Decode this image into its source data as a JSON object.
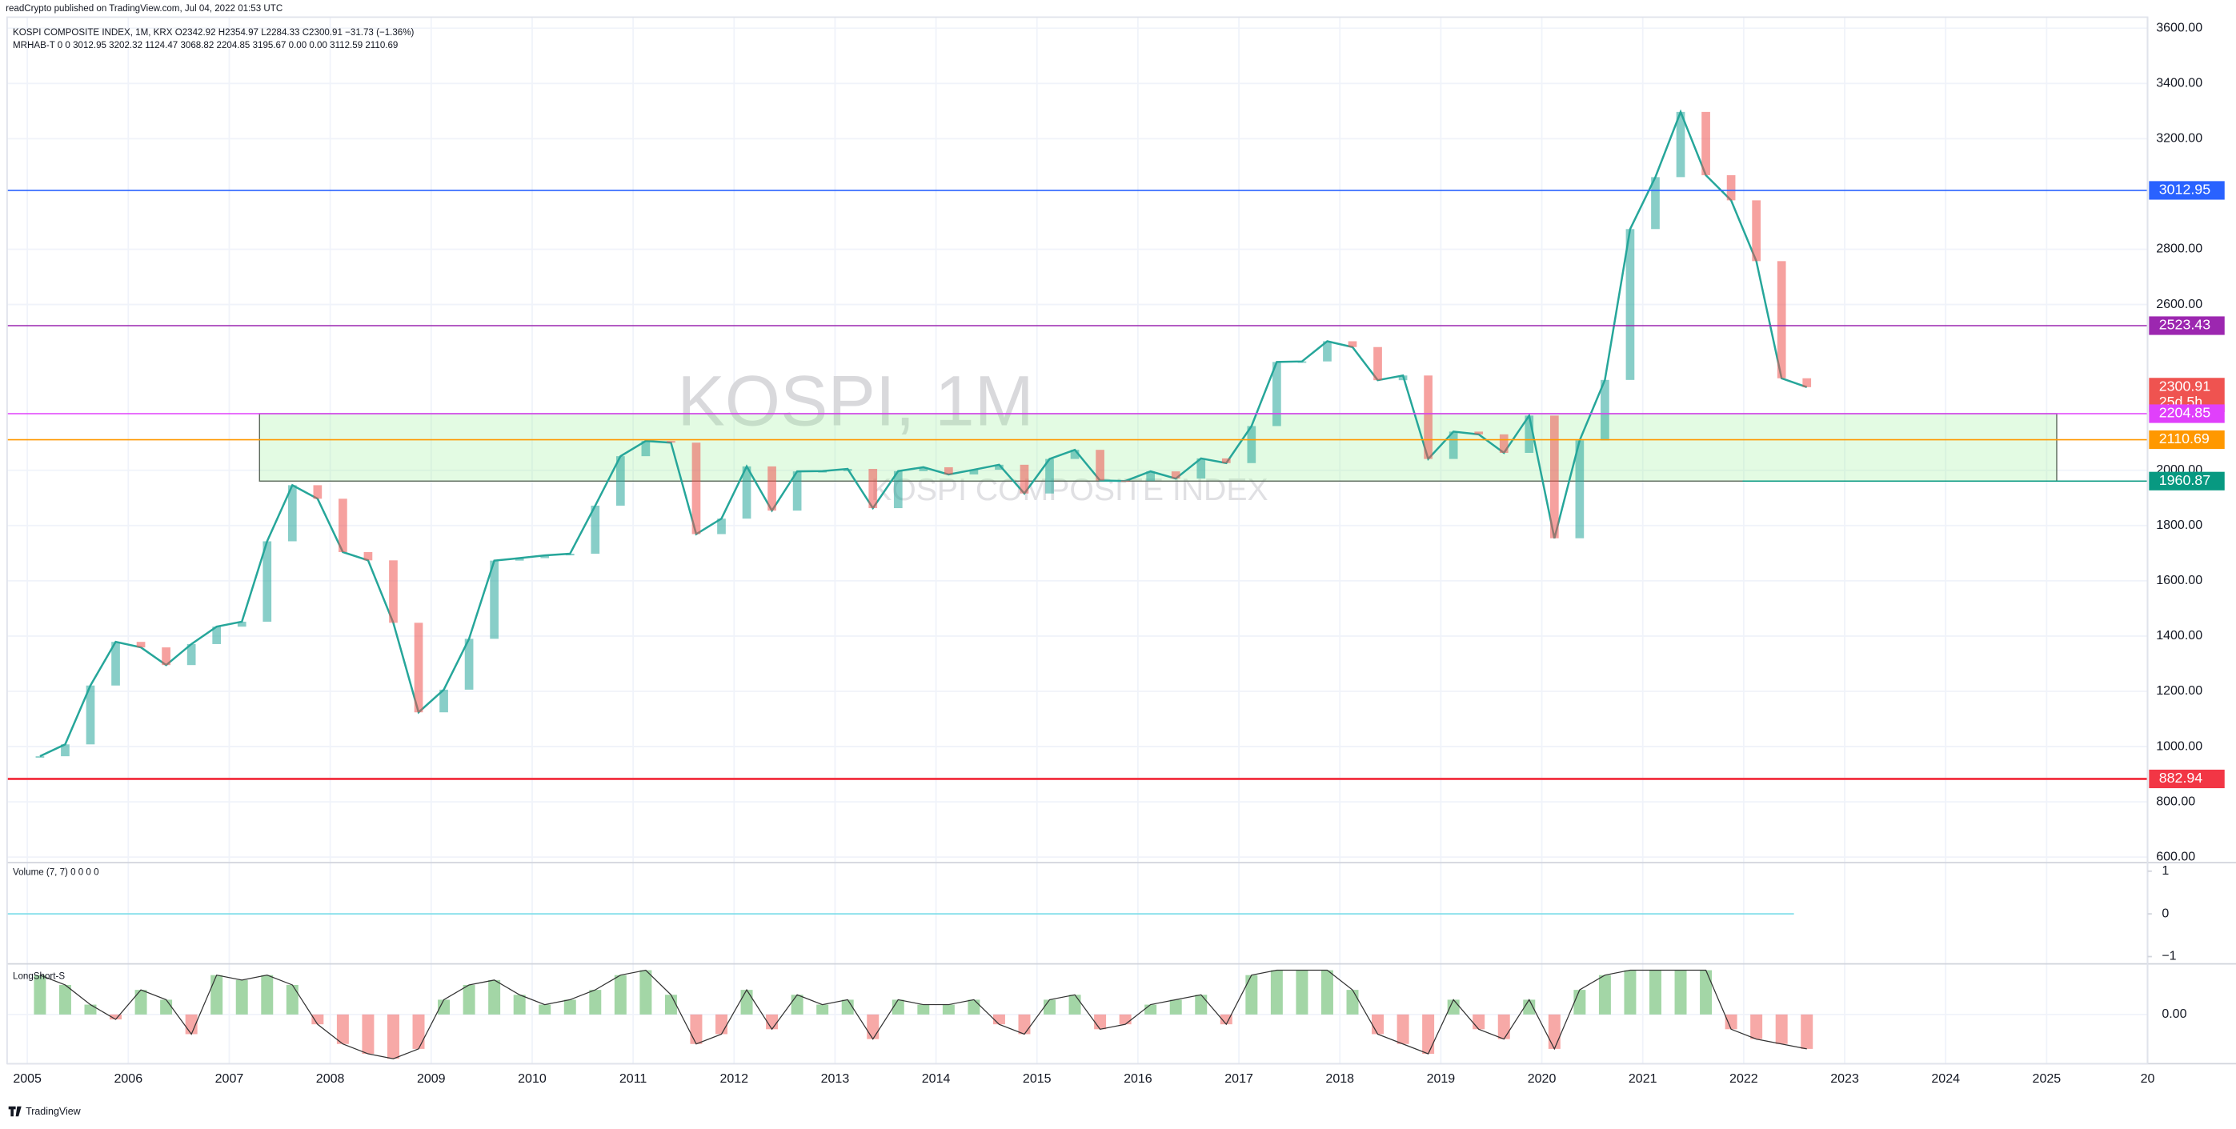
{
  "chart_data": {
    "type": "line",
    "publisher": "readCrypto published on TradingView.com, Jul 04, 2022 01:53 UTC",
    "title": "KOSPI COMPOSITE INDEX, 1M, KRX  O2342.92 H2354.97 L2284.33 C2300.91 −31.73 (−1.36%)",
    "indicator_legend": "MRHAB-T  0  0  3012.95  3202.32  1124.47  3068.82  2204.85  3195.67  0.00  0.00  3112.59  2110.69",
    "watermark": "KOSPI, 1M",
    "watermark_sub": "KOSPI COMPOSITE INDEX",
    "brand": "TradingView",
    "xlim": [
      2004.8,
      2026.0
    ],
    "xticks": [
      2005,
      2006,
      2007,
      2008,
      2009,
      2010,
      2011,
      2012,
      2013,
      2014,
      2015,
      2016,
      2017,
      2018,
      2019,
      2020,
      2021,
      2022,
      2023,
      2024,
      2025,
      {
        "value": 2026,
        "label": "20"
      }
    ],
    "ylim": [
      580,
      3640
    ],
    "yticks": [
      {
        "value": 600,
        "label": "600.00"
      },
      {
        "value": 800,
        "label": "800.00"
      },
      {
        "value": 1000,
        "label": "1000.00"
      },
      {
        "value": 1200,
        "label": "1200.00"
      },
      {
        "value": 1400,
        "label": "1400.00"
      },
      {
        "value": 1600,
        "label": "1600.00"
      },
      {
        "value": 1800,
        "label": "1800.00"
      },
      {
        "value": 2000,
        "label": "2000.00"
      },
      {
        "value": 2600,
        "label": "2600.00"
      },
      {
        "value": 2800,
        "label": "2800.00"
      },
      {
        "value": 3200,
        "label": "3200.00"
      },
      {
        "value": 3400,
        "label": "3400.00"
      },
      {
        "value": 3600,
        "label": "3600.00"
      }
    ],
    "series": [
      {
        "name": "KOSPI",
        "color": "#26a69a",
        "x": [
          2005.125,
          2005.375,
          2005.625,
          2005.875,
          2006.125,
          2006.375,
          2006.625,
          2006.875,
          2007.125,
          2007.375,
          2007.625,
          2007.875,
          2008.125,
          2008.375,
          2008.625,
          2008.875,
          2009.125,
          2009.375,
          2009.625,
          2009.875,
          2010.125,
          2010.375,
          2010.625,
          2010.875,
          2011.125,
          2011.375,
          2011.625,
          2011.875,
          2012.125,
          2012.375,
          2012.625,
          2012.875,
          2013.125,
          2013.375,
          2013.625,
          2013.875,
          2014.125,
          2014.375,
          2014.625,
          2014.875,
          2015.125,
          2015.375,
          2015.625,
          2015.875,
          2016.125,
          2016.375,
          2016.625,
          2016.875,
          2017.125,
          2017.375,
          2017.625,
          2017.875,
          2018.125,
          2018.375,
          2018.625,
          2018.875,
          2019.125,
          2019.375,
          2019.625,
          2019.875,
          2020.125,
          2020.375,
          2020.625,
          2020.875,
          2021.125,
          2021.375,
          2021.625,
          2021.875,
          2022.125,
          2022.375,
          2022.625
        ],
        "values": [
          965,
          1008,
          1221,
          1379,
          1359,
          1295,
          1371,
          1434,
          1452,
          1743,
          1946,
          1897,
          1704,
          1674,
          1448,
          1124,
          1206,
          1390,
          1673,
          1682,
          1692,
          1698,
          1872,
          2051,
          2106,
          2100,
          1769,
          1825,
          2014,
          1854,
          1996,
          1997,
          2005,
          1863,
          1997,
          2011,
          1985,
          2002,
          2020,
          1916,
          2041,
          2074,
          1963,
          1961,
          1996,
          1970,
          2043,
          2026,
          2160,
          2392,
          2394,
          2467,
          2446,
          2326,
          2343,
          2041,
          2140,
          2130,
          2063,
          2198,
          1754,
          2108,
          2327,
          2873,
          3061,
          3297,
          3068,
          2977,
          2757,
          2333,
          2300.91
        ]
      }
    ],
    "price_lines": [
      {
        "value": 3012.95,
        "color": "#2962ff",
        "label": "3012.95"
      },
      {
        "value": 2523.43,
        "color": "#9c27b0",
        "label": "2523.43"
      },
      {
        "value": 2300.91,
        "color": "#ef5350",
        "label": "2300.91"
      },
      {
        "value": 2204.85,
        "color": "#e040fb",
        "label": "2204.85"
      },
      {
        "value": 2110.69,
        "color": "#ff9800",
        "label": "2110.69"
      },
      {
        "value": 1960.87,
        "color": "#089981",
        "label": "1960.87"
      },
      {
        "value": 882.94,
        "color": "#f23645",
        "label": "882.94"
      }
    ],
    "countdown": "25d 5h",
    "zone": {
      "x": [
        2007.3,
        2025.1
      ]
    },
    "volume": {
      "legend": "Volume (7, 7)  0  0  0  0",
      "ylim": [
        -1.17,
        1.2
      ],
      "yticks": [
        1,
        0,
        {
          "value": -1,
          "label": "−1"
        }
      ]
    },
    "oscillator": {
      "legend": "LongShort-S",
      "ylim": [
        -1,
        1
      ],
      "yticks": [
        {
          "value": 0,
          "label": "0.00"
        }
      ],
      "values": [
        0.8,
        0.6,
        0.2,
        -0.1,
        0.5,
        0.3,
        -0.4,
        0.8,
        0.7,
        0.8,
        0.6,
        -0.2,
        -0.6,
        -0.8,
        -0.9,
        -0.7,
        0.3,
        0.6,
        0.7,
        0.4,
        0.2,
        0.3,
        0.5,
        0.8,
        0.9,
        0.4,
        -0.6,
        -0.4,
        0.5,
        -0.3,
        0.4,
        0.2,
        0.3,
        -0.5,
        0.3,
        0.2,
        0.2,
        0.3,
        -0.2,
        -0.4,
        0.3,
        0.4,
        -0.3,
        -0.2,
        0.2,
        0.3,
        0.4,
        -0.2,
        0.8,
        0.9,
        0.9,
        0.9,
        0.5,
        -0.4,
        -0.6,
        -0.8,
        0.3,
        -0.3,
        -0.5,
        0.3,
        -0.7,
        0.5,
        0.8,
        0.9,
        0.9,
        0.9,
        0.9,
        -0.3,
        -0.5,
        -0.6,
        -0.7
      ]
    }
  }
}
